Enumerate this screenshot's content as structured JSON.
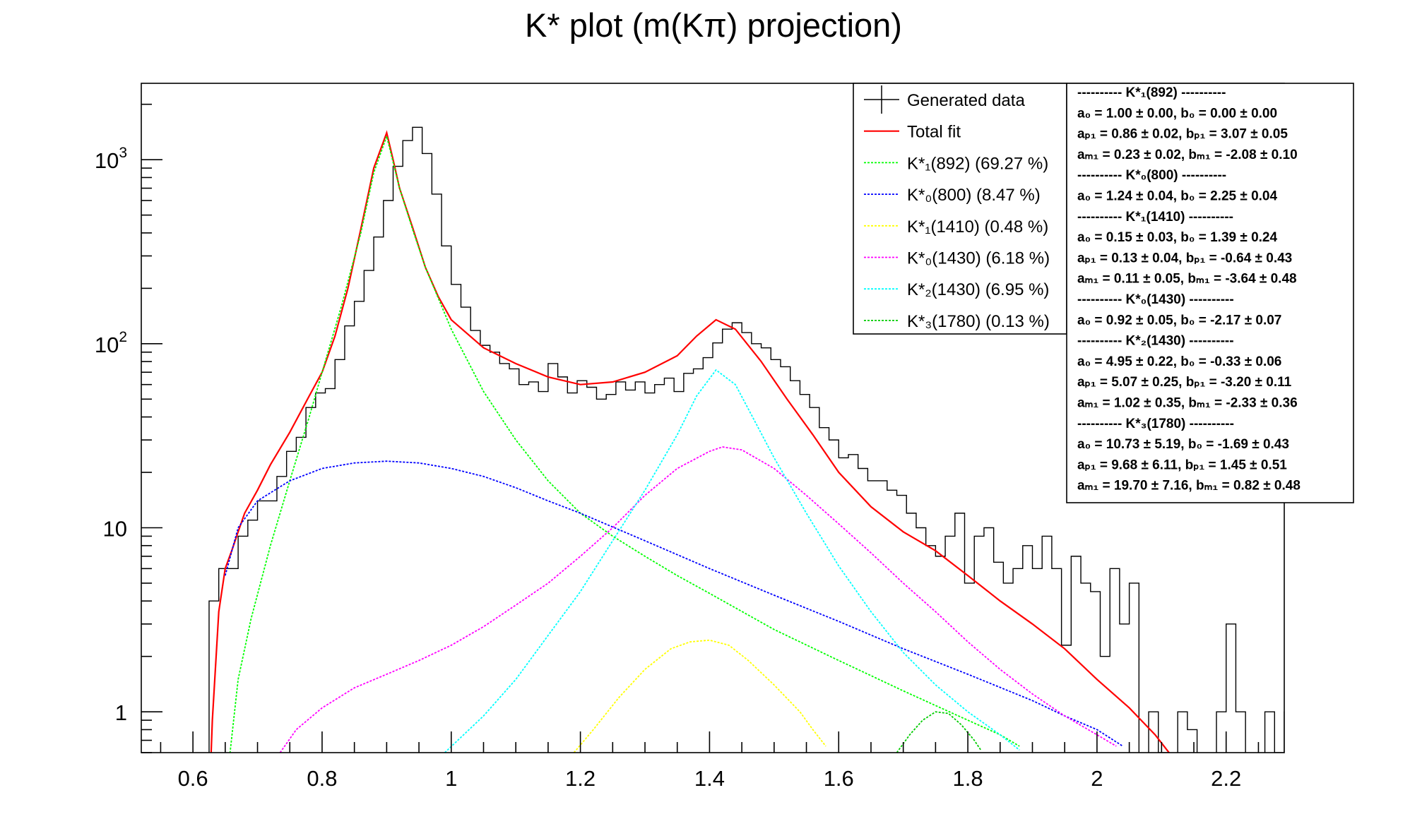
{
  "chart_data": {
    "type": "line",
    "title": "K* plot (m(Kπ) projection)",
    "xlabel": "",
    "ylabel": "",
    "xlim": [
      0.52,
      2.29
    ],
    "ylim": [
      0.6,
      2600
    ],
    "y_scale": "log",
    "grid": false,
    "legend_position": "top-right",
    "x_ticks": [
      "0.6",
      "0.8",
      "1",
      "1.2",
      "1.4",
      "1.6",
      "1.8",
      "2",
      "2.2"
    ],
    "y_ticks": [
      {
        "base": "1",
        "exp": ""
      },
      {
        "base": "10",
        "exp": ""
      },
      {
        "base": "10",
        "exp": "2"
      },
      {
        "base": "10",
        "exp": "3"
      }
    ],
    "histogram": {
      "name": "Generated data",
      "color": "#000000",
      "bin_low": 0.625,
      "bin_width": 0.015,
      "values": [
        4,
        6,
        6,
        9,
        11,
        14,
        14,
        19,
        26,
        31,
        45,
        54,
        57,
        82,
        125,
        170,
        250,
        380,
        600,
        920,
        1270,
        1500,
        1080,
        650,
        340,
        210,
        158,
        118,
        98,
        90,
        78,
        73,
        60,
        62,
        55,
        78,
        66,
        54,
        63,
        58,
        50,
        53,
        62,
        56,
        62,
        54,
        60,
        65,
        55,
        69,
        73,
        84,
        101,
        120,
        130,
        115,
        100,
        95,
        82,
        75,
        63,
        53,
        45,
        35,
        30,
        24,
        25,
        21,
        18,
        18,
        16,
        15,
        12,
        10,
        8,
        7,
        9,
        12,
        5,
        9,
        10,
        6.5,
        5,
        6,
        8,
        6,
        9,
        6,
        2.3,
        7,
        5,
        4.5,
        2,
        6,
        3,
        5,
        0.5,
        1,
        0.6,
        0.5,
        1,
        0.8,
        0.4,
        0.4,
        1,
        3,
        1,
        0.5,
        0.5,
        1,
        0.6,
        1,
        0.5,
        1,
        0.4
      ]
    },
    "series": [
      {
        "name": "Total fit",
        "color": "#ff0000",
        "points": [
          [
            0.625,
            0.3
          ],
          [
            0.63,
            0.9
          ],
          [
            0.64,
            3.5
          ],
          [
            0.65,
            6
          ],
          [
            0.66,
            7.5
          ],
          [
            0.67,
            9.5
          ],
          [
            0.68,
            12
          ],
          [
            0.7,
            16
          ],
          [
            0.72,
            22
          ],
          [
            0.75,
            33
          ],
          [
            0.78,
            52
          ],
          [
            0.8,
            70
          ],
          [
            0.82,
            110
          ],
          [
            0.84,
            200
          ],
          [
            0.86,
            420
          ],
          [
            0.88,
            900
          ],
          [
            0.9,
            1400
          ],
          [
            0.91,
            1000
          ],
          [
            0.92,
            700
          ],
          [
            0.94,
            430
          ],
          [
            0.96,
            260
          ],
          [
            0.98,
            180
          ],
          [
            1.0,
            135
          ],
          [
            1.05,
            95
          ],
          [
            1.1,
            78
          ],
          [
            1.15,
            66
          ],
          [
            1.2,
            60
          ],
          [
            1.25,
            62
          ],
          [
            1.3,
            70
          ],
          [
            1.35,
            86
          ],
          [
            1.38,
            110
          ],
          [
            1.41,
            135
          ],
          [
            1.44,
            120
          ],
          [
            1.48,
            80
          ],
          [
            1.52,
            50
          ],
          [
            1.56,
            32
          ],
          [
            1.6,
            20
          ],
          [
            1.65,
            13
          ],
          [
            1.7,
            9.5
          ],
          [
            1.75,
            7.5
          ],
          [
            1.8,
            5.5
          ],
          [
            1.85,
            4
          ],
          [
            1.9,
            3
          ],
          [
            1.95,
            2.2
          ],
          [
            2.0,
            1.5
          ],
          [
            2.05,
            1.05
          ],
          [
            2.09,
            0.75
          ],
          [
            2.12,
            0.55
          ]
        ]
      },
      {
        "name": "K*1(892) (69.27 %)",
        "color": "#00ff00",
        "points": [
          [
            0.655,
            0.5
          ],
          [
            0.67,
            1.5
          ],
          [
            0.69,
            3.2
          ],
          [
            0.72,
            8
          ],
          [
            0.75,
            18
          ],
          [
            0.78,
            40
          ],
          [
            0.8,
            70
          ],
          [
            0.83,
            160
          ],
          [
            0.86,
            400
          ],
          [
            0.88,
            850
          ],
          [
            0.9,
            1340
          ],
          [
            0.92,
            700
          ],
          [
            0.94,
            420
          ],
          [
            0.96,
            260
          ],
          [
            1.0,
            120
          ],
          [
            1.05,
            55
          ],
          [
            1.1,
            30
          ],
          [
            1.15,
            18
          ],
          [
            1.2,
            12
          ],
          [
            1.25,
            9
          ],
          [
            1.3,
            7
          ],
          [
            1.35,
            5.5
          ],
          [
            1.4,
            4.4
          ],
          [
            1.5,
            2.8
          ],
          [
            1.6,
            1.9
          ],
          [
            1.7,
            1.3
          ],
          [
            1.8,
            0.9
          ],
          [
            1.85,
            0.75
          ],
          [
            1.88,
            0.65
          ]
        ]
      },
      {
        "name": "K*0(800) (8.47 %)",
        "color": "#0000ff",
        "points": [
          [
            0.65,
            5.5
          ],
          [
            0.67,
            10
          ],
          [
            0.7,
            14
          ],
          [
            0.75,
            18
          ],
          [
            0.8,
            21
          ],
          [
            0.85,
            22.5
          ],
          [
            0.9,
            23
          ],
          [
            0.95,
            22.5
          ],
          [
            1.0,
            21
          ],
          [
            1.05,
            19
          ],
          [
            1.1,
            16.5
          ],
          [
            1.15,
            14
          ],
          [
            1.2,
            12
          ],
          [
            1.3,
            8.5
          ],
          [
            1.4,
            6
          ],
          [
            1.5,
            4.3
          ],
          [
            1.6,
            3.1
          ],
          [
            1.7,
            2.2
          ],
          [
            1.8,
            1.6
          ],
          [
            1.9,
            1.15
          ],
          [
            1.95,
            0.95
          ],
          [
            2.0,
            0.8
          ],
          [
            2.04,
            0.65
          ]
        ]
      },
      {
        "name": "K*1(1410) (0.48 %)",
        "color": "#ffff00",
        "points": [
          [
            1.19,
            0.6
          ],
          [
            1.22,
            0.8
          ],
          [
            1.26,
            1.2
          ],
          [
            1.3,
            1.7
          ],
          [
            1.34,
            2.2
          ],
          [
            1.37,
            2.4
          ],
          [
            1.4,
            2.45
          ],
          [
            1.43,
            2.3
          ],
          [
            1.46,
            1.9
          ],
          [
            1.5,
            1.4
          ],
          [
            1.54,
            1.0
          ],
          [
            1.56,
            0.8
          ],
          [
            1.58,
            0.65
          ]
        ]
      },
      {
        "name": "K*0(1430) (6.18 %)",
        "color": "#ff00ff",
        "points": [
          [
            0.735,
            0.6
          ],
          [
            0.76,
            0.8
          ],
          [
            0.8,
            1.05
          ],
          [
            0.85,
            1.35
          ],
          [
            0.9,
            1.6
          ],
          [
            0.95,
            1.9
          ],
          [
            1.0,
            2.3
          ],
          [
            1.05,
            2.9
          ],
          [
            1.1,
            3.8
          ],
          [
            1.15,
            5
          ],
          [
            1.2,
            7
          ],
          [
            1.25,
            10
          ],
          [
            1.3,
            15
          ],
          [
            1.35,
            21
          ],
          [
            1.4,
            26
          ],
          [
            1.42,
            27.5
          ],
          [
            1.45,
            26.5
          ],
          [
            1.5,
            21
          ],
          [
            1.55,
            15
          ],
          [
            1.6,
            10.5
          ],
          [
            1.65,
            7.3
          ],
          [
            1.7,
            5
          ],
          [
            1.75,
            3.5
          ],
          [
            1.8,
            2.4
          ],
          [
            1.85,
            1.7
          ],
          [
            1.9,
            1.25
          ],
          [
            1.95,
            0.95
          ],
          [
            2.0,
            0.75
          ],
          [
            2.03,
            0.65
          ]
        ]
      },
      {
        "name": "K*2(1430) (6.95 %)",
        "color": "#00ffff",
        "points": [
          [
            0.99,
            0.6
          ],
          [
            1.05,
            0.95
          ],
          [
            1.1,
            1.5
          ],
          [
            1.15,
            2.6
          ],
          [
            1.2,
            4.5
          ],
          [
            1.25,
            8.5
          ],
          [
            1.3,
            16
          ],
          [
            1.35,
            32
          ],
          [
            1.38,
            52
          ],
          [
            1.41,
            72
          ],
          [
            1.44,
            60
          ],
          [
            1.47,
            38
          ],
          [
            1.5,
            24
          ],
          [
            1.55,
            12
          ],
          [
            1.6,
            6.2
          ],
          [
            1.65,
            3.5
          ],
          [
            1.7,
            2.1
          ],
          [
            1.75,
            1.4
          ],
          [
            1.8,
            1.0
          ],
          [
            1.85,
            0.75
          ],
          [
            1.88,
            0.62
          ]
        ]
      },
      {
        "name": "K*3(1780) (0.13 %)",
        "color": "#00cc00",
        "points": [
          [
            1.69,
            0.6
          ],
          [
            1.71,
            0.75
          ],
          [
            1.73,
            0.9
          ],
          [
            1.75,
            1.0
          ],
          [
            1.77,
            0.98
          ],
          [
            1.79,
            0.85
          ],
          [
            1.81,
            0.7
          ],
          [
            1.82,
            0.62
          ]
        ]
      }
    ],
    "legend": [
      {
        "label": "Generated data",
        "sym": "data",
        "color": "#000000"
      },
      {
        "label": "Total fit",
        "sym": "solid",
        "color": "#ff0000"
      },
      {
        "label": "K*₁(892) (69.27 %)",
        "sym": "dash",
        "color": "#00ff00"
      },
      {
        "label": "K*₀(800) (8.47 %)",
        "sym": "dash",
        "color": "#0000ff"
      },
      {
        "label": "K*₁(1410) (0.48 %)",
        "sym": "dash",
        "color": "#ffff00"
      },
      {
        "label": "K*₀(1430) (6.18 %)",
        "sym": "dash",
        "color": "#ff00ff"
      },
      {
        "label": "K*₂(1430) (6.95 %)",
        "sym": "dash",
        "color": "#00ffff"
      },
      {
        "label": "K*₃(1780) (0.13 %)",
        "sym": "dash",
        "color": "#00cc00"
      }
    ],
    "stats_box": [
      "---------- K*₁(892) ----------",
      "a₀ = 1.00 ± 0.00, b₀ = 0.00 ± 0.00",
      "aₚ₁ = 0.86 ± 0.02, bₚ₁ = 3.07 ± 0.05",
      "aₘ₁ = 0.23 ± 0.02, bₘ₁ = -2.08 ± 0.10",
      "---------- K*₀(800) ----------",
      "a₀ = 1.24 ± 0.04, b₀ = 2.25 ± 0.04",
      "---------- K*₁(1410) ----------",
      "a₀ = 0.15 ± 0.03, b₀ = 1.39 ± 0.24",
      "aₚ₁ = 0.13 ± 0.04, bₚ₁ = -0.64 ± 0.43",
      "aₘ₁ = 0.11 ± 0.05, bₘ₁ = -3.64 ± 0.48",
      "---------- K*₀(1430) ----------",
      "a₀ = 0.92 ± 0.05, b₀ = -2.17 ± 0.07",
      "---------- K*₂(1430) ----------",
      "a₀ = 4.95 ± 0.22, b₀ = -0.33 ± 0.06",
      "aₚ₁ = 5.07 ± 0.25, bₚ₁ = -3.20 ± 0.11",
      "aₘ₁ = 1.02 ± 0.35, bₘ₁ = -2.33 ± 0.36",
      "---------- K*₃(1780) ----------",
      "a₀ = 10.73 ± 5.19, b₀ = -1.69 ± 0.43",
      "aₚ₁ = 9.68 ± 6.11, bₚ₁ = 1.45 ± 0.51",
      "aₘ₁ = 19.70 ± 7.16, bₘ₁ = 0.82 ± 0.48"
    ]
  }
}
